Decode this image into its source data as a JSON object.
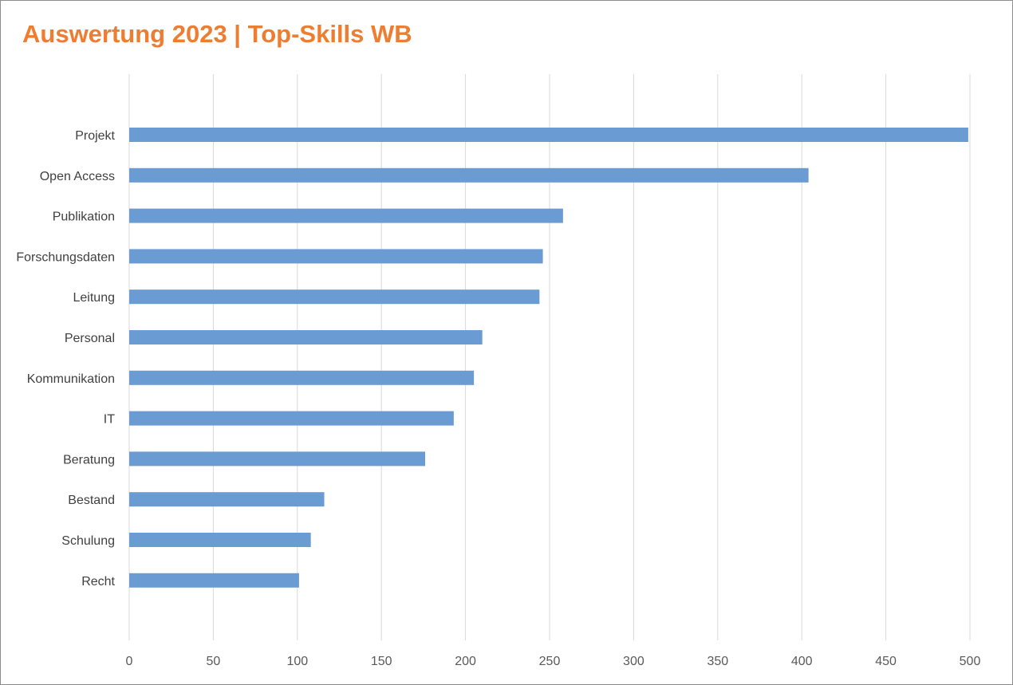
{
  "chart_data": {
    "type": "bar",
    "orientation": "horizontal",
    "title": "Auswertung 2023 | Top-Skills WB",
    "categories": [
      "Projekt",
      "Open Access",
      "Publikation",
      "Forschungsdaten",
      "Leitung",
      "Personal",
      "Kommunikation",
      "IT",
      "Beratung",
      "Bestand",
      "Schulung",
      "Recht"
    ],
    "values": [
      499,
      404,
      258,
      246,
      244,
      210,
      205,
      193,
      176,
      116,
      108,
      101
    ],
    "xlabel": "",
    "ylabel": "",
    "xlim": [
      0,
      500
    ],
    "xticks": [
      "0",
      "50",
      "100",
      "150",
      "200",
      "250",
      "300",
      "350",
      "400",
      "450",
      "500"
    ],
    "grid": "vertical",
    "legend": "none",
    "colors": {
      "bar": "#6a9bd3",
      "title": "#ed7d31",
      "grid": "#d9d9d9"
    }
  }
}
